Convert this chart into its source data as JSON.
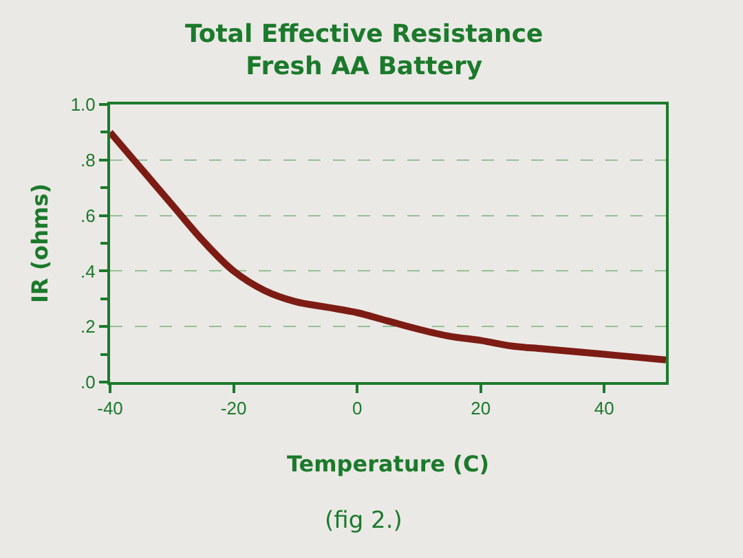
{
  "chart_data": {
    "type": "line",
    "title": "Total Effective Resistance\nFresh AA Battery",
    "xlabel": "Temperature (C)",
    "ylabel": "IR (ohms)",
    "annotations": [
      "(fig 2.)"
    ],
    "x": [
      -40,
      -35,
      -30,
      -25,
      -20,
      -15,
      -10,
      -5,
      0,
      5,
      10,
      15,
      20,
      25,
      30,
      35,
      40,
      45,
      50
    ],
    "series": [
      {
        "color": "#7d1c14",
        "values": [
          0.9,
          0.77,
          0.64,
          0.51,
          0.4,
          0.33,
          0.29,
          0.27,
          0.25,
          0.22,
          0.19,
          0.165,
          0.15,
          0.13,
          0.12,
          0.11,
          0.1,
          0.09,
          0.08
        ]
      }
    ],
    "xlim": [
      -40,
      50
    ],
    "xticks": [
      -40,
      -20,
      0,
      20,
      40
    ],
    "ylim": [
      0,
      1.0
    ],
    "yticks": [
      {
        "value": 0,
        "label": ".0"
      },
      {
        "value": 0.1,
        "label": null
      },
      {
        "value": 0.2,
        "label": ".2"
      },
      {
        "value": 0.3,
        "label": null
      },
      {
        "value": 0.4,
        "label": ".4"
      },
      {
        "value": 0.5,
        "label": null
      },
      {
        "value": 0.6,
        "label": ".6"
      },
      {
        "value": 0.7,
        "label": null
      },
      {
        "value": 0.8,
        "label": ".8"
      },
      {
        "value": 0.9,
        "label": null
      },
      {
        "value": 1.0,
        "label": "1.0"
      }
    ],
    "grid": "y",
    "line_style": "solid"
  }
}
